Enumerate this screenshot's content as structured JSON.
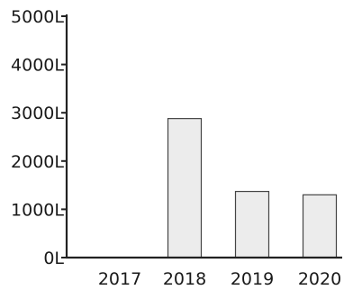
{
  "colors": {
    "bar_fill": "#ececec",
    "bar_stroke": "#444444",
    "axis": "#222222",
    "text": "#1a1a1a"
  },
  "chart_data": {
    "type": "bar",
    "title": "",
    "xlabel": "",
    "ylabel": "",
    "categories": [
      "2017",
      "2018",
      "2019",
      "2020"
    ],
    "values": [
      0,
      2880,
      1370,
      1300
    ],
    "ylim": [
      0,
      5000
    ],
    "y_ticks": [
      0,
      1000,
      2000,
      3000,
      4000,
      5000
    ],
    "y_tick_labels": [
      "0L",
      "1000L",
      "2000L",
      "3000L",
      "4000L",
      "5000L"
    ],
    "grid": false,
    "legend": "none"
  }
}
